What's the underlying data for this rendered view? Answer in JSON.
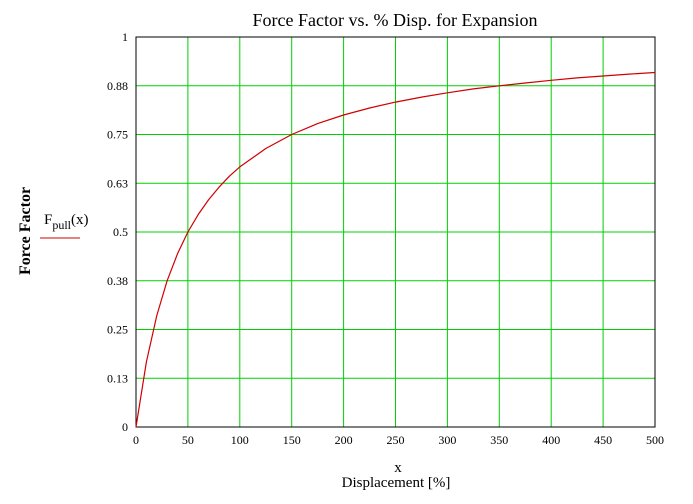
{
  "chart_data": {
    "type": "line",
    "title": "Force Factor vs. % Disp. for Expansion",
    "xlabel_var": "x",
    "xlabel": "Displacement [%]",
    "ylabel": "Force Factor",
    "xlim": [
      0,
      500
    ],
    "ylim": [
      0,
      1
    ],
    "x_ticks": [
      "0",
      "50",
      "100",
      "150",
      "200",
      "250",
      "300",
      "350",
      "400",
      "450",
      "500"
    ],
    "y_ticks": [
      "0",
      "0.13",
      "0.25",
      "0.38",
      "0.5",
      "0.63",
      "0.75",
      "0.88",
      "1"
    ],
    "grid": true,
    "grid_color": "#00d000",
    "legend": {
      "placement": "left",
      "label_main": "F",
      "label_sub": "pull",
      "label_arg": "(x)"
    },
    "series": [
      {
        "color": "#d00000",
        "x": [
          0,
          10,
          20,
          30,
          40,
          50,
          60,
          70,
          80,
          90,
          100,
          125,
          150,
          175,
          200,
          225,
          250,
          275,
          300,
          325,
          350,
          375,
          400,
          425,
          450,
          475,
          500
        ],
        "y": [
          0,
          0.167,
          0.286,
          0.375,
          0.444,
          0.5,
          0.545,
          0.583,
          0.615,
          0.643,
          0.667,
          0.714,
          0.75,
          0.778,
          0.8,
          0.818,
          0.833,
          0.846,
          0.857,
          0.867,
          0.875,
          0.882,
          0.889,
          0.895,
          0.9,
          0.905,
          0.909
        ]
      }
    ]
  }
}
